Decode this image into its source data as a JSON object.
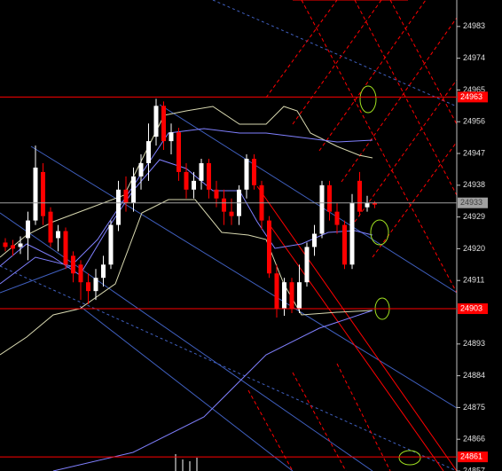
{
  "chart_data": {
    "type": "candlestick",
    "ylim": [
      24857,
      24990.5
    ],
    "yticks": [
      24983,
      24974,
      24965,
      24956,
      24947,
      24938,
      24929,
      24920,
      24911,
      24893,
      24884,
      24875,
      24866,
      24857
    ],
    "up_color": "#ffffff",
    "down_color": "#ff0000",
    "open": [
      24921.75,
      24921,
      24920.5,
      24923,
      24928,
      24941.75,
      24930.5,
      24923,
      24925,
      24918,
      24915.5,
      24910.5,
      24908,
      24911.75,
      24915.5,
      24926.75,
      24936.75,
      24933,
      24940.5,
      24944.25,
      24951.75,
      24960.5,
      24950.5,
      24953,
      24941.75,
      24936.75,
      24939.25,
      24944.25,
      24936.75,
      24934.25,
      24930.5,
      24929.25,
      24936.75,
      24945.5,
      24938,
      24928,
      24913,
      24903,
      24910.5,
      24903,
      24910.5,
      24920.5,
      24924.25,
      24938,
      24930.5,
      24926.75,
      24915.5,
      24939.25,
      24931.75,
      24933
    ],
    "high": [
      24923,
      24922.5,
      24923.5,
      24930.5,
      24949.25,
      24944.25,
      24931.75,
      24926.75,
      24926,
      24919.25,
      24916.75,
      24913,
      24914.25,
      24918,
      24928,
      24939.25,
      24940.5,
      24943,
      24946.75,
      24955.5,
      24962.5,
      24961.75,
      24955.5,
      24954.25,
      24944.25,
      24941.75,
      24945.5,
      24945.5,
      24939.25,
      24936.75,
      24934.25,
      24938,
      24946.75,
      24946.75,
      24939.25,
      24929.25,
      24915.5,
      24911.75,
      24911.75,
      24915.5,
      24921.75,
      24926.75,
      24939.25,
      24939.25,
      24933,
      24928,
      24935.5,
      24941.75,
      24935,
      24933.5
    ],
    "low": [
      24919.25,
      24918,
      24918.5,
      24916.75,
      24926.75,
      24926.75,
      24920.5,
      24919.25,
      24914.25,
      24910.5,
      24905.5,
      24904.25,
      24905.5,
      24909.25,
      24914.25,
      24925,
      24930.5,
      24930.5,
      24936.75,
      24939.25,
      24949.25,
      24948,
      24946.75,
      24939.25,
      24934.25,
      24934.25,
      24936.75,
      24934.25,
      24931.75,
      24926.75,
      24926.75,
      24926.75,
      24934.25,
      24936.75,
      24925.5,
      24911.75,
      24900.5,
      24901,
      24901.75,
      24901.75,
      24909.25,
      24918,
      24923,
      24928,
      24924.25,
      24914.25,
      24914.25,
      24929.25,
      24930.5,
      24931.5
    ],
    "close": [
      24920.5,
      24920,
      24921.5,
      24928,
      24943,
      24929.25,
      24921.75,
      24925,
      24915.5,
      24913,
      24910.5,
      24908,
      24911.75,
      24915.5,
      24926.75,
      24936.75,
      24933,
      24940.5,
      24944.25,
      24950.5,
      24960.5,
      24950.5,
      24953,
      24941.75,
      24936.75,
      24939.25,
      24944.25,
      24936.75,
      24934.25,
      24930.5,
      24929.25,
      24936.75,
      24945.5,
      24938,
      24928,
      24913,
      24903,
      24910.5,
      24903,
      24910.5,
      24920.5,
      24924.25,
      24938,
      24930.5,
      24926.75,
      24915.5,
      24933,
      24930.5,
      24933,
      24932.5
    ],
    "levels": [
      {
        "value": 24963,
        "color": "#ff0000"
      },
      {
        "value": 24933,
        "color": "#a0a0a0"
      },
      {
        "value": 24903,
        "color": "#ff0000"
      },
      {
        "value": 24861,
        "color": "#ff0000"
      }
    ]
  }
}
